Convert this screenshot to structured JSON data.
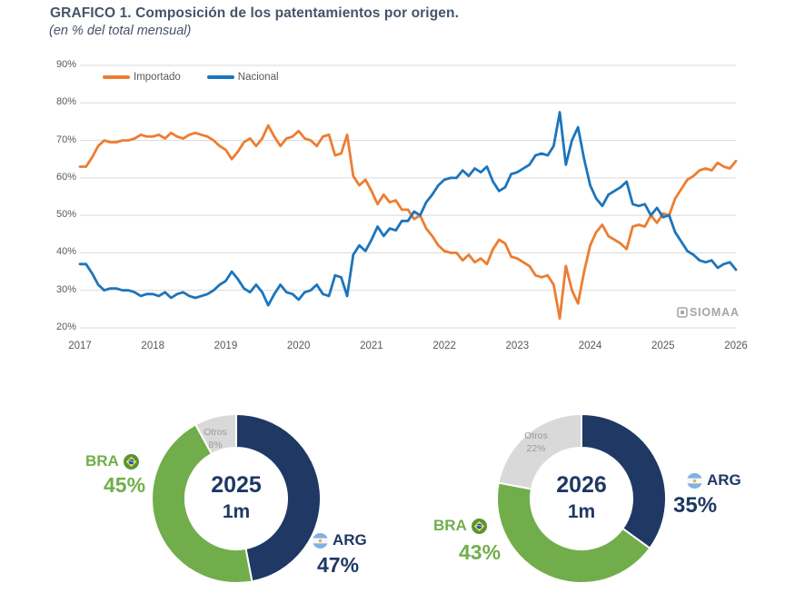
{
  "page": {
    "title": "GRAFICO 1. Composición de los patentamientos por origen.",
    "subtitle": "(en % del total mensual)"
  },
  "watermark": {
    "label": "SIOMAA"
  },
  "colors": {
    "importado": "#ED7D31",
    "nacional": "#1C75BC",
    "arg_navy": "#1F3864",
    "bra_green": "#71AE4B",
    "otros_gray": "#D9D9D9",
    "grid": "#D9D9D9",
    "axis_text": "#595959",
    "title_text": "#44546A"
  },
  "chart_data": [
    {
      "type": "line",
      "title": "Composición de los patentamientos por origen",
      "ylabel": "% del total mensual",
      "x_start": "2017-01",
      "x_end": "2026-01",
      "frequency": "monthly",
      "x_year_labels": [
        "2017",
        "2018",
        "2019",
        "2020",
        "2021",
        "2022",
        "2023",
        "2024",
        "2025",
        "2026"
      ],
      "y_ticks": [
        90,
        80,
        70,
        60,
        50,
        40,
        30,
        20
      ],
      "y_tick_suffix": "%",
      "ylim": [
        20,
        90
      ],
      "grid": true,
      "legend_position": "top-left-inside",
      "series": [
        {
          "name": "Importado",
          "color": "#ED7D31",
          "values": [
            63,
            63,
            65.5,
            68.5,
            70,
            69.5,
            69.5,
            70,
            70,
            70.5,
            71.5,
            71,
            71,
            71.5,
            70.5,
            72,
            71,
            70.5,
            71.5,
            72,
            71.5,
            71,
            70,
            68.5,
            67.5,
            65,
            67,
            69.5,
            70.5,
            68.5,
            70.5,
            74,
            71,
            68.5,
            70.5,
            71,
            72.5,
            70.5,
            70,
            68.5,
            71,
            71.5,
            66,
            66.5,
            71.5,
            60.5,
            58,
            59.5,
            56.5,
            53,
            55.5,
            53.5,
            54,
            51.5,
            51.5,
            49,
            50,
            46.5,
            44.5,
            42,
            40.5,
            40,
            40,
            38,
            39.5,
            37.5,
            38.5,
            37,
            41,
            43.5,
            42.5,
            39,
            38.5,
            37.5,
            36.5,
            34,
            33.5,
            34,
            31.5,
            22.5,
            36.5,
            30,
            26.5,
            35,
            42,
            45.5,
            47.5,
            44.5,
            43.5,
            42.5,
            41,
            47,
            47.5,
            47,
            50,
            48,
            50.5,
            50,
            54.5,
            57,
            59.5,
            60.5,
            62,
            62.5,
            62,
            64,
            63,
            62.5,
            64.5
          ]
        },
        {
          "name": "Nacional",
          "color": "#1C75BC",
          "values": [
            37,
            37,
            34.5,
            31.5,
            30,
            30.5,
            30.5,
            30,
            30,
            29.5,
            28.5,
            29,
            29,
            28.5,
            29.5,
            28,
            29,
            29.5,
            28.5,
            28,
            28.5,
            29,
            30,
            31.5,
            32.5,
            35,
            33,
            30.5,
            29.5,
            31.5,
            29.5,
            26,
            29,
            31.5,
            29.5,
            29,
            27.5,
            29.5,
            30,
            31.5,
            29,
            28.5,
            34,
            33.5,
            28.5,
            39.5,
            42,
            40.5,
            43.5,
            47,
            44.5,
            46.5,
            46,
            48.5,
            48.5,
            51,
            50,
            53.5,
            55.5,
            58,
            59.5,
            60,
            60,
            62,
            60.5,
            62.5,
            61.5,
            63,
            59,
            56.5,
            57.5,
            61,
            61.5,
            62.5,
            63.5,
            66,
            66.5,
            66,
            68.5,
            77.5,
            63.5,
            70,
            73.5,
            65,
            58,
            54.5,
            52.5,
            55.5,
            56.5,
            57.5,
            59,
            53,
            52.5,
            53,
            50,
            52,
            49.5,
            50,
            45.5,
            43,
            40.5,
            39.5,
            38,
            37.5,
            38,
            36,
            37,
            37.5,
            35.5
          ]
        }
      ]
    },
    {
      "type": "pie",
      "subtype": "donut",
      "title": "2025 1m",
      "slices": [
        {
          "label": "ARG",
          "value": 47,
          "color": "#1F3864"
        },
        {
          "label": "BRA",
          "value": 45,
          "color": "#71AE4B"
        },
        {
          "label": "Otros",
          "value": 8,
          "color": "#D9D9D9"
        }
      ]
    },
    {
      "type": "pie",
      "subtype": "donut",
      "title": "2026 1m",
      "slices": [
        {
          "label": "ARG",
          "value": 35,
          "color": "#1F3864"
        },
        {
          "label": "BRA",
          "value": 43,
          "color": "#71AE4B"
        },
        {
          "label": "Otros",
          "value": 22,
          "color": "#D9D9D9"
        }
      ]
    }
  ],
  "legend": {
    "importado": "Importado",
    "nacional": "Nacional"
  },
  "donuts": [
    {
      "center_year": "2025",
      "center_sub": "1m",
      "bra_label": "BRA",
      "bra_pct": "45%",
      "arg_label": "ARG",
      "arg_pct": "47%",
      "otros_label": "Otros",
      "otros_pct": "8%"
    },
    {
      "center_year": "2026",
      "center_sub": "1m",
      "bra_label": "BRA",
      "bra_pct": "43%",
      "arg_label": "ARG",
      "arg_pct": "35%",
      "otros_label": "Otros",
      "otros_pct": "22%"
    }
  ]
}
